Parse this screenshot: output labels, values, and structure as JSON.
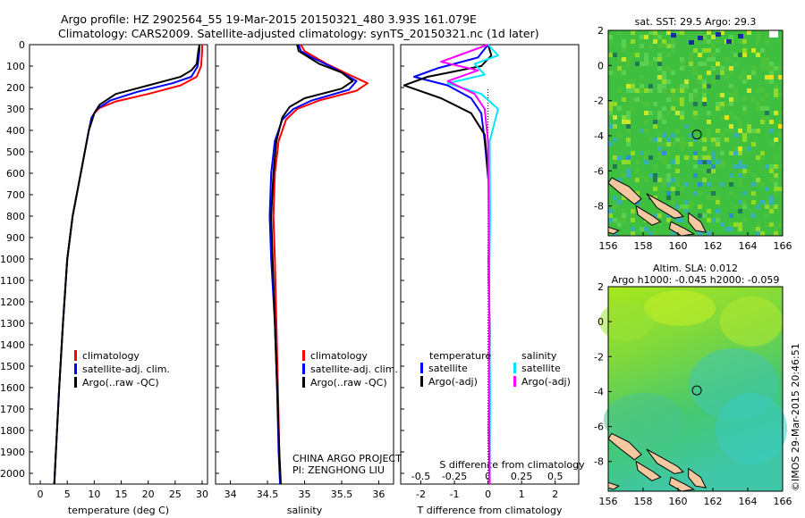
{
  "header": {
    "line1": "Argo profile: HZ 2902564_55 19-Mar-2015 20150321_480 3.93S 161.079E",
    "line2": "Climatology: CARS2009. Satellite-adjusted climatology: synTS_20150321.nc (1d later)"
  },
  "footer": {
    "project": "CHINA ARGO PROJECT",
    "pi": "PI: ZENGHONG LIU",
    "copyright": "©IMOS 29-Mar-2015 20:46:51"
  },
  "colors": {
    "climatology": "#ff0000",
    "satellite": "#0000ff",
    "argo": "#000000",
    "sal_satellite": "#00e5ff",
    "sal_argo": "#ff00ff"
  },
  "chart_data": [
    {
      "id": "temperature",
      "type": "line",
      "xlabel": "temperature (deg C)",
      "xlim": [
        -2,
        31
      ],
      "ylim": [
        0,
        2050
      ],
      "y_reversed": true,
      "xticks": [
        0,
        5,
        10,
        15,
        20,
        25,
        30
      ],
      "yticks": [
        0,
        100,
        200,
        300,
        400,
        500,
        600,
        700,
        800,
        900,
        1000,
        1100,
        1200,
        1300,
        1400,
        1500,
        1600,
        1700,
        1800,
        1900,
        2000
      ],
      "legend": [
        "climatology",
        "satellite-adj. clim.",
        "Argo(..raw -QC)"
      ],
      "legend_placement": "lower-right",
      "series": [
        {
          "name": "climatology",
          "color": "#ff0000",
          "points": [
            [
              30,
              0
            ],
            [
              30,
              30
            ],
            [
              29.8,
              100
            ],
            [
              29,
              150
            ],
            [
              26,
              190
            ],
            [
              20,
              230
            ],
            [
              14,
              265
            ],
            [
              11,
              295
            ],
            [
              10,
              320
            ],
            [
              9,
              400
            ],
            [
              7.5,
              600
            ],
            [
              6,
              800
            ],
            [
              5,
              1000
            ],
            [
              4.2,
              1300
            ],
            [
              3.5,
              1600
            ],
            [
              2.9,
              1900
            ],
            [
              2.6,
              2050
            ]
          ]
        },
        {
          "name": "satellite-adj. clim.",
          "color": "#0000ff",
          "points": [
            [
              29.5,
              0
            ],
            [
              29.5,
              30
            ],
            [
              29.2,
              100
            ],
            [
              28,
              150
            ],
            [
              24.5,
              180
            ],
            [
              18,
              220
            ],
            [
              13,
              260
            ],
            [
              10.5,
              300
            ],
            [
              9.5,
              340
            ],
            [
              9,
              400
            ],
            [
              7.5,
              600
            ],
            [
              6,
              800
            ],
            [
              5,
              1000
            ],
            [
              4.2,
              1300
            ],
            [
              3.5,
              1600
            ],
            [
              2.9,
              1900
            ],
            [
              2.6,
              2050
            ]
          ]
        },
        {
          "name": "Argo(..raw -QC)",
          "color": "#000000",
          "points": [
            [
              29.5,
              0
            ],
            [
              29.3,
              30
            ],
            [
              29,
              90
            ],
            [
              28,
              120
            ],
            [
              26,
              150
            ],
            [
              23,
              170
            ],
            [
              20,
              190
            ],
            [
              14,
              230
            ],
            [
              11,
              280
            ],
            [
              10,
              320
            ],
            [
              9,
              400
            ],
            [
              7.5,
              600
            ],
            [
              6,
              800
            ],
            [
              5,
              1000
            ],
            [
              4.2,
              1300
            ],
            [
              3.5,
              1600
            ],
            [
              2.9,
              1900
            ],
            [
              2.6,
              2050
            ]
          ]
        }
      ]
    },
    {
      "id": "salinity",
      "type": "line",
      "xlabel": "salinity",
      "xlim": [
        33.8,
        36.2
      ],
      "ylim": [
        0,
        2050
      ],
      "y_reversed": true,
      "xticks": [
        34,
        34.5,
        35,
        35.5,
        36
      ],
      "legend": [
        "climatology",
        "satellite-adj. clim.",
        "Argo(..raw -QC)"
      ],
      "legend_placement": "lower-right",
      "series": [
        {
          "name": "climatology",
          "color": "#ff0000",
          "points": [
            [
              34.95,
              0
            ],
            [
              35,
              30
            ],
            [
              35.3,
              90
            ],
            [
              35.6,
              140
            ],
            [
              35.85,
              180
            ],
            [
              35.7,
              215
            ],
            [
              35.2,
              260
            ],
            [
              34.9,
              300
            ],
            [
              34.75,
              350
            ],
            [
              34.65,
              450
            ],
            [
              34.6,
              600
            ],
            [
              34.58,
              800
            ],
            [
              34.6,
              1000
            ],
            [
              34.62,
              1300
            ],
            [
              34.64,
              1600
            ],
            [
              34.66,
              1900
            ],
            [
              34.67,
              2050
            ]
          ]
        },
        {
          "name": "satellite-adj. clim.",
          "color": "#0000ff",
          "points": [
            [
              34.92,
              0
            ],
            [
              34.95,
              30
            ],
            [
              35.1,
              60
            ],
            [
              35.4,
              110
            ],
            [
              35.7,
              170
            ],
            [
              35.6,
              210
            ],
            [
              35.1,
              260
            ],
            [
              34.85,
              300
            ],
            [
              34.7,
              350
            ],
            [
              34.6,
              450
            ],
            [
              34.55,
              600
            ],
            [
              34.53,
              800
            ],
            [
              34.55,
              1000
            ],
            [
              34.6,
              1300
            ],
            [
              34.63,
              1600
            ],
            [
              34.65,
              1900
            ],
            [
              34.67,
              2050
            ]
          ]
        },
        {
          "name": "Argo(..raw -QC)",
          "color": "#000000",
          "points": [
            [
              34.9,
              0
            ],
            [
              34.92,
              30
            ],
            [
              35.2,
              90
            ],
            [
              35.5,
              130
            ],
            [
              35.65,
              170
            ],
            [
              35.5,
              205
            ],
            [
              35.0,
              250
            ],
            [
              34.8,
              290
            ],
            [
              34.7,
              340
            ],
            [
              34.62,
              450
            ],
            [
              34.58,
              600
            ],
            [
              34.55,
              800
            ],
            [
              34.57,
              1000
            ],
            [
              34.6,
              1300
            ],
            [
              34.63,
              1600
            ],
            [
              34.66,
              1900
            ],
            [
              34.68,
              2050
            ]
          ]
        }
      ]
    },
    {
      "id": "difference",
      "type": "line",
      "xlabel": "T difference from climatology",
      "xlabel2": "S difference from climatology",
      "xlim": [
        -2.6,
        2.7
      ],
      "ylim": [
        0,
        2050
      ],
      "y_reversed": true,
      "xticks": [
        -2,
        -1,
        0,
        1,
        2
      ],
      "x2_tick_labels": [
        "-0.5",
        "-0.25",
        "0",
        "0.25",
        "0.5"
      ],
      "legend_titles": [
        "temperature",
        "salinity"
      ],
      "legend": [
        "satellite",
        "Argo(-adj)",
        "satellite",
        "Argo(-adj)"
      ],
      "legend_placement": "lower",
      "series": [
        {
          "name": "satellite",
          "group": "temperature",
          "color": "#0000ff",
          "points": [
            [
              0,
              0
            ],
            [
              -0.3,
              60
            ],
            [
              -1.5,
              110
            ],
            [
              -2.2,
              150
            ],
            [
              -1.2,
              190
            ],
            [
              -0.5,
              250
            ],
            [
              -0.2,
              320
            ],
            [
              -0.1,
              450
            ],
            [
              0.05,
              700
            ],
            [
              0.02,
              1000
            ],
            [
              0.05,
              1400
            ],
            [
              0.03,
              1800
            ],
            [
              0.05,
              2050
            ]
          ]
        },
        {
          "name": "Argo(-adj)",
          "group": "temperature",
          "color": "#000000",
          "points": [
            [
              0,
              0
            ],
            [
              0.1,
              50
            ],
            [
              -0.2,
              100
            ],
            [
              -1.8,
              150
            ],
            [
              -2.5,
              190
            ],
            [
              -1.4,
              250
            ],
            [
              -0.5,
              320
            ],
            [
              -0.1,
              420
            ],
            [
              0.05,
              700
            ],
            [
              0.02,
              1000
            ],
            [
              0.05,
              1400
            ],
            [
              0.03,
              1800
            ],
            [
              0.05,
              2050
            ]
          ]
        },
        {
          "name": "satellite",
          "group": "salinity",
          "color": "#00e5ff",
          "points": [
            [
              0,
              0
            ],
            [
              0.3,
              50
            ],
            [
              -0.4,
              90
            ],
            [
              -0.1,
              140
            ],
            [
              -1.2,
              180
            ],
            [
              -0.2,
              230
            ],
            [
              0.3,
              300
            ],
            [
              0.05,
              450
            ],
            [
              0.06,
              800
            ],
            [
              0.03,
              1200
            ],
            [
              0.06,
              1600
            ],
            [
              0.05,
              2050
            ]
          ]
        },
        {
          "name": "Argo(-adj)",
          "group": "salinity",
          "color": "#ff00ff",
          "points": [
            [
              0,
              0
            ],
            [
              -1.4,
              80
            ],
            [
              -0.3,
              120
            ],
            [
              -1.2,
              170
            ],
            [
              -0.4,
              230
            ],
            [
              -0.1,
              300
            ],
            [
              0,
              450
            ],
            [
              0.02,
              800
            ],
            [
              0.04,
              1200
            ],
            [
              0.03,
              1600
            ],
            [
              0.05,
              2050
            ]
          ]
        }
      ]
    },
    {
      "id": "sst_map",
      "type": "heatmap",
      "title": "sat. SST: 29.5 Argo: 29.3",
      "xlim": [
        156,
        166
      ],
      "ylim": [
        -9.7,
        2
      ],
      "xticks": [
        156,
        158,
        160,
        162,
        164,
        166
      ],
      "yticks": [
        2,
        0,
        -2,
        -4,
        -6,
        -8
      ],
      "marker": {
        "lon": 161.079,
        "lat": -3.93
      }
    },
    {
      "id": "sla_map",
      "type": "heatmap",
      "title": "Altim. SLA: 0.012",
      "subtitle": "Argo h1000: -0.045 h2000: -0.059",
      "xlim": [
        156,
        166
      ],
      "ylim": [
        -9.7,
        2
      ],
      "xticks": [
        156,
        158,
        160,
        162,
        164,
        166
      ],
      "yticks": [
        2,
        0,
        -2,
        -4,
        -6,
        -8
      ],
      "marker": {
        "lon": 161.079,
        "lat": -3.93
      }
    }
  ]
}
